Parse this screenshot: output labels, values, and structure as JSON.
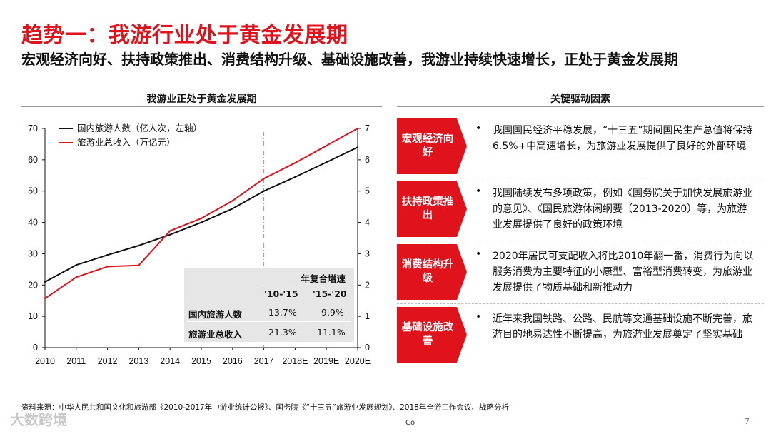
{
  "header": {
    "title": "趋势一：我游行业处于黄金发展期",
    "subtitle": "宏观经济向好、扶持政策推出、消费结构升级、基础设施改善，我游业持续快速增长，正处于黄金发展期"
  },
  "left_panel": {
    "title": "我游业正处于黄金发展期"
  },
  "right_panel": {
    "title": "关键驱动因素"
  },
  "chart_data": {
    "type": "line",
    "categories": [
      "2010",
      "2011",
      "2012",
      "2013",
      "2014",
      "2015",
      "2016",
      "2017",
      "2018E",
      "2019E",
      "2020E"
    ],
    "series": [
      {
        "name": "国内旅游人数（亿人次，左轴）",
        "axis": "left",
        "color": "#111111",
        "values": [
          21,
          26.4,
          29.6,
          32.6,
          36.1,
          40,
          44.4,
          50,
          54.5,
          59.2,
          64
        ]
      },
      {
        "name": "旅游业总收入（万亿元）",
        "axis": "right",
        "color": "#e0121b",
        "values": [
          1.57,
          2.25,
          2.59,
          2.63,
          3.73,
          4.13,
          4.69,
          5.4,
          5.9,
          6.45,
          7.0
        ]
      }
    ],
    "y_left": {
      "range": [
        0,
        70
      ],
      "ticks": [
        "0",
        "10",
        "20",
        "30",
        "40",
        "50",
        "60",
        "70"
      ]
    },
    "y_right": {
      "range": [
        0,
        7
      ],
      "ticks": [
        "0",
        "1",
        "2",
        "3",
        "4",
        "5",
        "6",
        "7"
      ]
    },
    "divider_after": "2017",
    "legend_position": "top-left"
  },
  "cagr_table": {
    "header": "年复合增速",
    "columns": [
      "'10-'15",
      "'15-'20"
    ],
    "rows": [
      {
        "label": "国内旅游人数",
        "v1": "13.7%",
        "v2": "9.9%"
      },
      {
        "label": "旅游业总收入",
        "v1": "21.3%",
        "v2": "11.1%"
      }
    ]
  },
  "drivers": [
    {
      "label": "宏观经济向好",
      "bullet": "•",
      "text": "我国国民经济平稳发展，“十三五”期间国民生产总值将保持6.5%+中高速增长，为旅游业发展提供了良好的外部环境"
    },
    {
      "label": "扶持政策推出",
      "bullet": "•",
      "text": "我国陆续发布多项政策，例如《国务院关于加快发展旅游业的意见》、《国民旅游休闲纲要（2013-2020）等，为旅游业发展提供了良好的政策环境"
    },
    {
      "label": "消费结构升级",
      "bullet": "•",
      "text": "2020年居民可支配收入将比2010年翻一番，消费行为向以服务消费为主要特征的小康型、富裕型消费转变，为旅游业发展提供了物质基础和新推动力"
    },
    {
      "label": "基础设施改善",
      "bullet": "•",
      "text": "近年来我国铁路、公路、民航等交通基础设施不断完善，旅游目的地易达性不断提高，为旅游业发展奠定了坚实基础"
    }
  ],
  "footer": {
    "source": "资料来源：中华人民共和国文化和旅游部《2010-2017年中游业统计公报》、国务院《“十三五”旅游业发展规划》、2018年全游工作会议、战略分析",
    "page_number": "7",
    "co_mark": "Co",
    "watermark": "大数跨境"
  },
  "colors": {
    "accent": "#e0121b",
    "table_bg": "#e6e6e6"
  }
}
